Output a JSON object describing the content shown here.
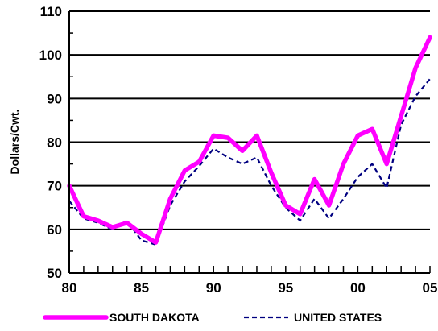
{
  "chart_data": {
    "type": "line",
    "title": "",
    "xlabel": "",
    "ylabel": "Dollars/Cwt.",
    "ylim": [
      50,
      110
    ],
    "xlim": [
      1980,
      2005
    ],
    "y_ticks": [
      50,
      60,
      70,
      80,
      90,
      100,
      110
    ],
    "x_ticks": [
      {
        "value": 1980,
        "label": "80"
      },
      {
        "value": 1985,
        "label": "85"
      },
      {
        "value": 1990,
        "label": "90"
      },
      {
        "value": 1995,
        "label": "95"
      },
      {
        "value": 2000,
        "label": "00"
      },
      {
        "value": 2005,
        "label": "05"
      }
    ],
    "grid": "horizontal",
    "legend_position": "bottom",
    "x": [
      1980,
      1981,
      1982,
      1983,
      1984,
      1985,
      1986,
      1987,
      1988,
      1989,
      1990,
      1991,
      1992,
      1993,
      1994,
      1995,
      1996,
      1997,
      1998,
      1999,
      2000,
      2001,
      2002,
      2003,
      2004,
      2005
    ],
    "series": [
      {
        "name": "SOUTH DAKOTA",
        "color": "#ff00ff",
        "style": "solid-thick",
        "values": [
          70,
          63,
          62,
          60.5,
          61.5,
          59,
          57,
          67,
          73.5,
          75.5,
          81.5,
          81,
          78,
          81.5,
          73,
          65.5,
          63.5,
          71.5,
          65.5,
          75,
          81.5,
          83,
          75,
          86,
          97,
          104
        ]
      },
      {
        "name": "UNITED STATES",
        "color": "#000080",
        "style": "dashed",
        "values": [
          66.5,
          62.5,
          61.5,
          60,
          62,
          57.5,
          56.5,
          65.5,
          71,
          74.5,
          78.5,
          76.5,
          75,
          76.5,
          70,
          65,
          62,
          67,
          62.5,
          67,
          72,
          75,
          69.5,
          84,
          90.5,
          94.5
        ]
      }
    ]
  }
}
